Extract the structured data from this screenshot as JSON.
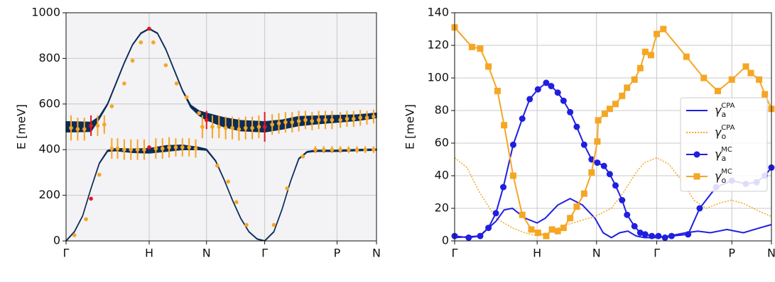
{
  "chart_data": [
    {
      "type": "band",
      "ylabel": "E [meV]",
      "xlim": [
        0,
        3.735
      ],
      "ylim": [
        0,
        1000
      ],
      "xticks": [
        {
          "value": 0,
          "label": "Γ"
        },
        {
          "value": 1,
          "label": "H"
        },
        {
          "value": 1.69,
          "label": "N"
        },
        {
          "value": 2.39,
          "label": "Γ"
        },
        {
          "value": 3.26,
          "label": "P"
        },
        {
          "value": 3.735,
          "label": "N"
        }
      ],
      "yticks": [
        0,
        200,
        400,
        600,
        800,
        1000
      ],
      "grid": true,
      "background": "#f3f2f5",
      "bands": [
        {
          "color": "#0b2d57",
          "x": [
            0,
            0.3,
            0.4,
            0.5,
            0.6,
            0.7,
            0.8,
            0.9,
            1.0,
            1.1,
            1.2,
            1.3,
            1.4,
            1.5,
            1.6,
            1.69,
            1.9,
            2.1,
            2.39,
            2.6,
            2.8,
            3.0,
            3.26,
            3.5,
            3.735
          ],
          "values": [
            500,
            500,
            540,
            600,
            690,
            780,
            860,
            910,
            930,
            910,
            840,
            750,
            660,
            590,
            560,
            545,
            520,
            505,
            500,
            510,
            525,
            530,
            535,
            540,
            550
          ],
          "widths": [
            45,
            40,
            10,
            5,
            4,
            3,
            3,
            3,
            3,
            3,
            3,
            3,
            4,
            10,
            20,
            30,
            40,
            45,
            45,
            40,
            40,
            35,
            30,
            25,
            20
          ]
        },
        {
          "color": "#0b2d57",
          "x": [
            0,
            0.1,
            0.2,
            0.3,
            0.4,
            0.5,
            0.6,
            0.8,
            1.0,
            1.2,
            1.4,
            1.6,
            1.69,
            1.8,
            1.9,
            2.0,
            2.1,
            2.2,
            2.3,
            2.39,
            2.5,
            2.6,
            2.7,
            2.8,
            2.9,
            3.0,
            3.26,
            3.5,
            3.735
          ],
          "values": [
            0,
            40,
            110,
            230,
            340,
            395,
            400,
            395,
            395,
            405,
            410,
            405,
            400,
            350,
            270,
            180,
            100,
            40,
            8,
            0,
            40,
            140,
            260,
            360,
            390,
            395,
            395,
            398,
            400
          ],
          "widths": [
            2,
            2,
            2,
            2,
            3,
            5,
            10,
            15,
            20,
            25,
            20,
            10,
            5,
            3,
            2,
            2,
            2,
            2,
            2,
            2,
            2,
            2,
            2,
            3,
            4,
            5,
            6,
            6,
            6
          ]
        }
      ],
      "error_points": [
        {
          "color": "#f5a623",
          "x": [
            0.1,
            0.24,
            0.4,
            0.55,
            0.7,
            0.8,
            0.9,
            1.05,
            1.2,
            1.33,
            1.45,
            1.6,
            1.82,
            1.95,
            2.05,
            2.17,
            2.5,
            2.66,
            2.85,
            0.06,
            0.14,
            0.22,
            0.38,
            0.46,
            0.55,
            0.62,
            0.7,
            0.78,
            0.86,
            0.94,
            1.08,
            1.16,
            1.24,
            1.32,
            1.4,
            1.48,
            1.56,
            1.64,
            1.76,
            1.84,
            1.92,
            2.0,
            2.08,
            2.16,
            2.24,
            2.32,
            2.48,
            2.56,
            2.64,
            2.72,
            2.8,
            2.88,
            2.96,
            3.04,
            3.12,
            3.2,
            3.3,
            3.38,
            3.46,
            3.54,
            3.62,
            3.7,
            3.0,
            3.1,
            3.2,
            3.3,
            3.4,
            3.5,
            3.6,
            3.7
          ],
          "values": [
            25,
            95,
            290,
            590,
            690,
            790,
            870,
            870,
            770,
            690,
            630,
            560,
            330,
            260,
            170,
            70,
            70,
            230,
            370,
            495,
            490,
            490,
            505,
            510,
            405,
            405,
            400,
            400,
            400,
            400,
            405,
            405,
            410,
            410,
            410,
            410,
            405,
            500,
            500,
            500,
            495,
            495,
            490,
            495,
            495,
            500,
            510,
            515,
            520,
            520,
            525,
            530,
            525,
            530,
            530,
            530,
            530,
            535,
            535,
            540,
            540,
            545,
            400,
            400,
            400,
            400,
            400,
            400,
            400,
            400
          ],
          "errors": [
            0,
            0,
            0,
            0,
            0,
            0,
            0,
            0,
            0,
            0,
            0,
            0,
            0,
            0,
            0,
            0,
            0,
            0,
            0,
            55,
            50,
            50,
            45,
            40,
            45,
            45,
            45,
            45,
            45,
            45,
            45,
            45,
            45,
            40,
            40,
            40,
            40,
            50,
            50,
            50,
            50,
            50,
            50,
            50,
            50,
            50,
            45,
            45,
            45,
            45,
            45,
            40,
            40,
            40,
            40,
            40,
            35,
            35,
            35,
            35,
            30,
            30,
            15,
            15,
            15,
            15,
            15,
            15,
            15,
            15
          ]
        },
        {
          "color": "#e8141c",
          "x": [
            0.3,
            1.0,
            1.0,
            0.3,
            2.39,
            1.69
          ],
          "values": [
            185,
            930,
            410,
            505,
            500,
            530
          ],
          "errors": [
            0,
            0,
            0,
            45,
            65,
            40
          ]
        }
      ]
    },
    {
      "type": "line",
      "ylabel": "E [meV]",
      "xlim": [
        0,
        3.84
      ],
      "ylim": [
        0,
        140
      ],
      "xticks": [
        {
          "value": 0,
          "label": "Γ"
        },
        {
          "value": 1,
          "label": "H"
        },
        {
          "value": 1.72,
          "label": "N"
        },
        {
          "value": 2.45,
          "label": "Γ"
        },
        {
          "value": 3.36,
          "label": "P"
        },
        {
          "value": 3.84,
          "label": "N"
        }
      ],
      "yticks": [
        0,
        20,
        40,
        60,
        80,
        100,
        120,
        140
      ],
      "grid": true,
      "legend": "right",
      "series": [
        {
          "name": "γ",
          "sub": "a",
          "sup": "CPA",
          "color": "#1f1fe0",
          "marker": "none",
          "dash": "solid",
          "x": [
            0,
            0.3,
            0.5,
            0.6,
            0.7,
            0.85,
            1.0,
            1.1,
            1.25,
            1.4,
            1.55,
            1.7,
            1.8,
            1.9,
            2.0,
            2.1,
            2.2,
            2.3,
            2.45,
            2.6,
            2.8,
            2.95,
            3.1,
            3.3,
            3.5,
            3.7,
            3.84
          ],
          "values": [
            2,
            3,
            12,
            19,
            20,
            14,
            11,
            14,
            22,
            26,
            22,
            14,
            5,
            2,
            5,
            6,
            3,
            2,
            2,
            3,
            5,
            6,
            5,
            7,
            5,
            8,
            10
          ]
        },
        {
          "name": "γ",
          "sub": "o",
          "sup": "CPA",
          "color": "#f5a623",
          "marker": "none",
          "dash": "dotted",
          "x": [
            0,
            0.15,
            0.3,
            0.5,
            0.7,
            0.85,
            1.0,
            1.15,
            1.3,
            1.5,
            1.7,
            1.9,
            2.05,
            2.2,
            2.3,
            2.45,
            2.6,
            2.75,
            2.9,
            3.05,
            3.2,
            3.35,
            3.5,
            3.7,
            3.84
          ],
          "values": [
            51,
            45,
            30,
            14,
            8,
            5,
            3,
            5,
            9,
            12,
            15,
            20,
            30,
            42,
            48,
            51,
            47,
            37,
            25,
            20,
            23,
            25,
            23,
            18,
            15
          ]
        },
        {
          "name": "γ",
          "sub": "a",
          "sup": "MC",
          "color": "#1f1fe0",
          "marker": "circle",
          "dash": "solid",
          "x": [
            0,
            0.17,
            0.31,
            0.41,
            0.5,
            0.59,
            0.71,
            0.82,
            0.91,
            1.01,
            1.11,
            1.17,
            1.25,
            1.32,
            1.4,
            1.48,
            1.57,
            1.66,
            1.73,
            1.81,
            1.88,
            1.95,
            2.03,
            2.09,
            2.18,
            2.25,
            2.31,
            2.39,
            2.47,
            2.55,
            2.63,
            2.83,
            2.97,
            3.17,
            3.36,
            3.53,
            3.66,
            3.76,
            3.84
          ],
          "values": [
            3,
            2,
            3,
            8,
            17,
            33,
            59,
            75,
            87,
            93,
            97,
            95,
            91,
            86,
            79,
            70,
            59,
            50,
            48,
            46,
            41,
            34,
            25,
            16,
            9,
            5,
            4,
            3,
            3,
            2,
            3,
            4,
            20,
            33,
            37,
            35,
            36,
            40,
            45
          ]
        },
        {
          "name": "γ",
          "sub": "o",
          "sup": "MC",
          "color": "#f5a623",
          "marker": "square",
          "dash": "solid",
          "x": [
            0,
            0.21,
            0.31,
            0.41,
            0.52,
            0.6,
            0.71,
            0.82,
            0.93,
            1.01,
            1.11,
            1.18,
            1.25,
            1.32,
            1.4,
            1.48,
            1.57,
            1.66,
            1.73,
            1.74,
            1.82,
            1.88,
            1.95,
            2.03,
            2.09,
            2.18,
            2.25,
            2.31,
            2.38,
            2.45,
            2.53,
            2.81,
            3.02,
            3.19,
            3.36,
            3.53,
            3.59,
            3.69,
            3.76,
            3.84
          ],
          "values": [
            131,
            119,
            118,
            107,
            92,
            71,
            40,
            16,
            7,
            5,
            3,
            7,
            6,
            8,
            14,
            21,
            29,
            42,
            61,
            74,
            78,
            81,
            84,
            89,
            94,
            99,
            106,
            116,
            114,
            127,
            130,
            113,
            100,
            92,
            99,
            107,
            103,
            99,
            90,
            81
          ]
        }
      ]
    }
  ]
}
